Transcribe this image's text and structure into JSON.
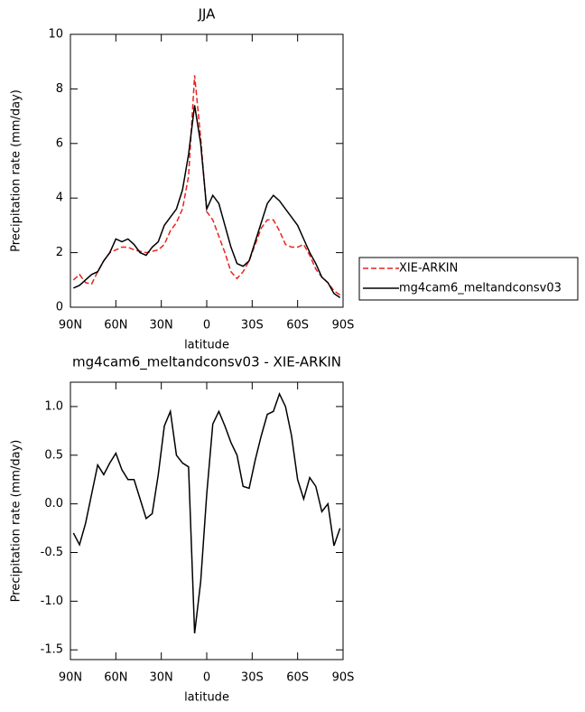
{
  "chart_data": [
    {
      "type": "line",
      "title": "JJA",
      "x_label": "latitude",
      "y_label": "Precipitation rate (mm/day)",
      "x": [
        88,
        84,
        80,
        76,
        72,
        68,
        64,
        60,
        56,
        52,
        48,
        44,
        40,
        36,
        32,
        28,
        24,
        20,
        16,
        12,
        8,
        4,
        0,
        -4,
        -8,
        -12,
        -16,
        -20,
        -24,
        -28,
        -32,
        -36,
        -40,
        -44,
        -48,
        -52,
        -56,
        -60,
        -64,
        -68,
        -72,
        -76,
        -80,
        -84,
        -88
      ],
      "series": [
        {
          "name": "XIE-ARKIN",
          "color": "#e8231f",
          "style": "dashed",
          "values": [
            1.0,
            1.2,
            0.9,
            0.85,
            1.3,
            1.7,
            2.0,
            2.1,
            2.2,
            2.2,
            2.1,
            2.05,
            2.0,
            2.05,
            2.1,
            2.3,
            2.8,
            3.1,
            3.6,
            4.8,
            8.5,
            6.2,
            3.5,
            3.2,
            2.6,
            2.0,
            1.3,
            1.05,
            1.3,
            1.7,
            2.3,
            2.9,
            3.2,
            3.2,
            2.8,
            2.3,
            2.2,
            2.2,
            2.3,
            1.9,
            1.4,
            1.1,
            0.9,
            0.6,
            0.45
          ]
        },
        {
          "name": "mg4cam6_meltandconsv03",
          "color": "#000000",
          "style": "solid",
          "values": [
            0.7,
            0.8,
            1.0,
            1.2,
            1.3,
            1.7,
            2.0,
            2.5,
            2.4,
            2.5,
            2.3,
            2.0,
            1.9,
            2.2,
            2.4,
            3.0,
            3.3,
            3.6,
            4.3,
            5.6,
            7.4,
            6.0,
            3.6,
            4.1,
            3.8,
            3.0,
            2.2,
            1.6,
            1.5,
            1.7,
            2.4,
            3.1,
            3.8,
            4.1,
            3.9,
            3.6,
            3.3,
            3.0,
            2.5,
            2.0,
            1.6,
            1.1,
            0.9,
            0.5,
            0.35
          ]
        }
      ],
      "xlim": [
        90,
        -90
      ],
      "xticks": [
        {
          "value": 90,
          "label": "90N"
        },
        {
          "value": 60,
          "label": "60N"
        },
        {
          "value": 30,
          "label": "30N"
        },
        0,
        {
          "value": -30,
          "label": "30S"
        },
        {
          "value": -60,
          "label": "60S"
        },
        {
          "value": -90,
          "label": "90S"
        }
      ],
      "ylim": [
        0,
        10
      ],
      "yticks": [
        0,
        2,
        4,
        6,
        8,
        10
      ],
      "legend": "right"
    },
    {
      "type": "line",
      "title": "mg4cam6_meltandconsv03 - XIE-ARKIN",
      "x_label": "latitude",
      "y_label": "Precipitation rate (mm/day)",
      "x": [
        88,
        84,
        80,
        76,
        72,
        68,
        64,
        60,
        56,
        52,
        48,
        44,
        40,
        36,
        32,
        28,
        24,
        20,
        16,
        12,
        8,
        4,
        0,
        -4,
        -8,
        -12,
        -16,
        -20,
        -24,
        -28,
        -32,
        -36,
        -40,
        -44,
        -48,
        -52,
        -56,
        -60,
        -64,
        -68,
        -72,
        -76,
        -80,
        -84,
        -88
      ],
      "series": [
        {
          "color": "#000000",
          "style": "solid",
          "values": [
            -0.3,
            -0.42,
            -0.2,
            0.1,
            0.4,
            0.3,
            0.42,
            0.52,
            0.35,
            0.25,
            0.25,
            0.05,
            -0.15,
            -0.1,
            0.3,
            0.8,
            0.95,
            0.5,
            0.42,
            0.38,
            -1.33,
            -0.8,
            0.1,
            0.82,
            0.95,
            0.8,
            0.63,
            0.5,
            0.18,
            0.16,
            0.45,
            0.7,
            0.92,
            0.95,
            1.13,
            1.0,
            0.7,
            0.25,
            0.05,
            0.27,
            0.18,
            -0.08,
            0.0,
            -0.43,
            -0.25
          ]
        }
      ],
      "xlim": [
        90,
        -90
      ],
      "xticks": [
        {
          "value": 90,
          "label": "90N"
        },
        {
          "value": 60,
          "label": "60N"
        },
        {
          "value": 30,
          "label": "30N"
        },
        0,
        {
          "value": -30,
          "label": "30S"
        },
        {
          "value": -60,
          "label": "60S"
        },
        {
          "value": -90,
          "label": "90S"
        }
      ],
      "ylim": [
        -1.6,
        1.25
      ],
      "yticks": [
        -1.5,
        {
          "value": -1.0,
          "label": "-1.0"
        },
        -0.5,
        {
          "value": 0.0,
          "label": "0.0"
        },
        0.5,
        {
          "value": 1.0,
          "label": "1.0"
        }
      ]
    }
  ]
}
